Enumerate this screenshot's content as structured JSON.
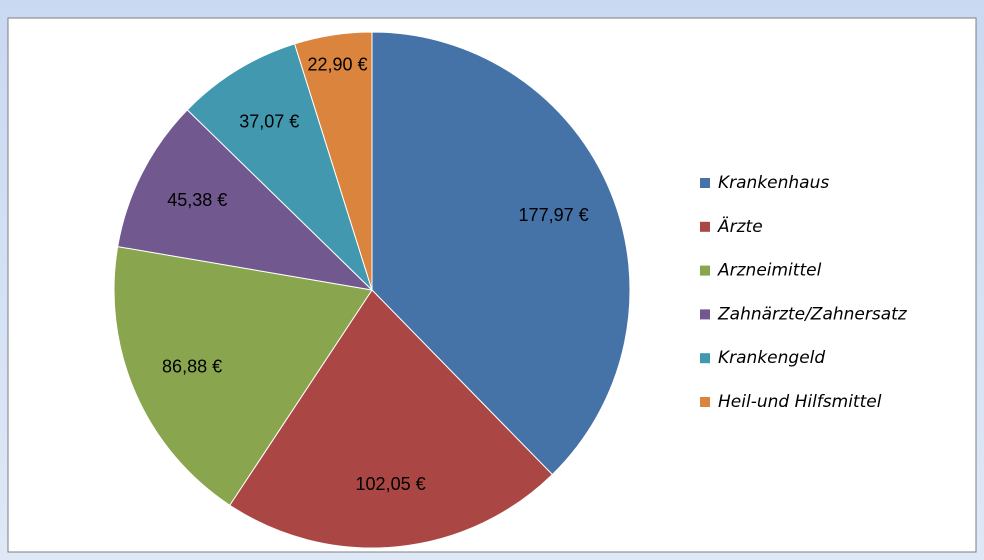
{
  "chart_data": {
    "type": "pie",
    "categories": [
      "Krankenhaus",
      "Ärzte",
      "Arzneimittel",
      "Zahnärzte/Zahnersatz",
      "Krankengeld",
      "Heil-und Hilfsmittel"
    ],
    "values": [
      177.97,
      102.05,
      86.88,
      45.38,
      37.07,
      22.9
    ],
    "value_labels": [
      "177,97 €",
      "102,05 €",
      "86,88 €",
      "45,38 €",
      "37,07 €",
      "22,90 €"
    ],
    "colors": [
      "#4572a7",
      "#aa4643",
      "#89a54e",
      "#71588f",
      "#4198af",
      "#db843d"
    ],
    "legend": "right"
  }
}
